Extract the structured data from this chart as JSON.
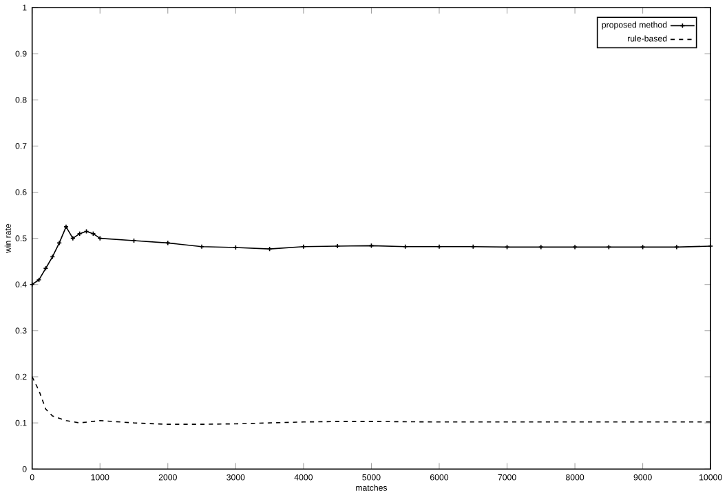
{
  "chart_data": {
    "type": "line",
    "xlabel": "matches",
    "ylabel": "win rate",
    "xlim": [
      0,
      10000
    ],
    "ylim": [
      0,
      1
    ],
    "xticks": [
      0,
      1000,
      2000,
      3000,
      4000,
      5000,
      6000,
      7000,
      8000,
      9000,
      10000
    ],
    "yticks": [
      0,
      0.1,
      0.2,
      0.3,
      0.4,
      0.5,
      0.6,
      0.7,
      0.8,
      0.9,
      1
    ],
    "legend": "top right",
    "grid": false,
    "series": [
      {
        "name": "proposed method",
        "color": "#000000",
        "marker": "cross",
        "line_style": "solid",
        "x": [
          0,
          100,
          200,
          300,
          400,
          500,
          600,
          700,
          800,
          900,
          1000,
          1500,
          2000,
          2500,
          3000,
          3500,
          4000,
          4500,
          5000,
          5500,
          6000,
          6500,
          7000,
          7500,
          8000,
          8500,
          9000,
          9500,
          10000
        ],
        "values": [
          0.4,
          0.41,
          0.435,
          0.46,
          0.49,
          0.525,
          0.5,
          0.51,
          0.515,
          0.51,
          0.5,
          0.495,
          0.49,
          0.482,
          0.48,
          0.477,
          0.482,
          0.483,
          0.484,
          0.482,
          0.482,
          0.482,
          0.481,
          0.481,
          0.481,
          0.481,
          0.481,
          0.481,
          0.483
        ]
      },
      {
        "name": "rule-based",
        "color": "#000000",
        "marker": "none",
        "line_style": "dashed",
        "x": [
          0,
          100,
          200,
          300,
          500,
          700,
          1000,
          1500,
          2000,
          2500,
          3000,
          3500,
          4000,
          4500,
          5000,
          6000,
          7000,
          8000,
          9000,
          10000
        ],
        "values": [
          0.2,
          0.17,
          0.13,
          0.115,
          0.105,
          0.1,
          0.105,
          0.1,
          0.097,
          0.097,
          0.098,
          0.1,
          0.102,
          0.103,
          0.103,
          0.102,
          0.102,
          0.102,
          0.102,
          0.102
        ]
      }
    ]
  }
}
